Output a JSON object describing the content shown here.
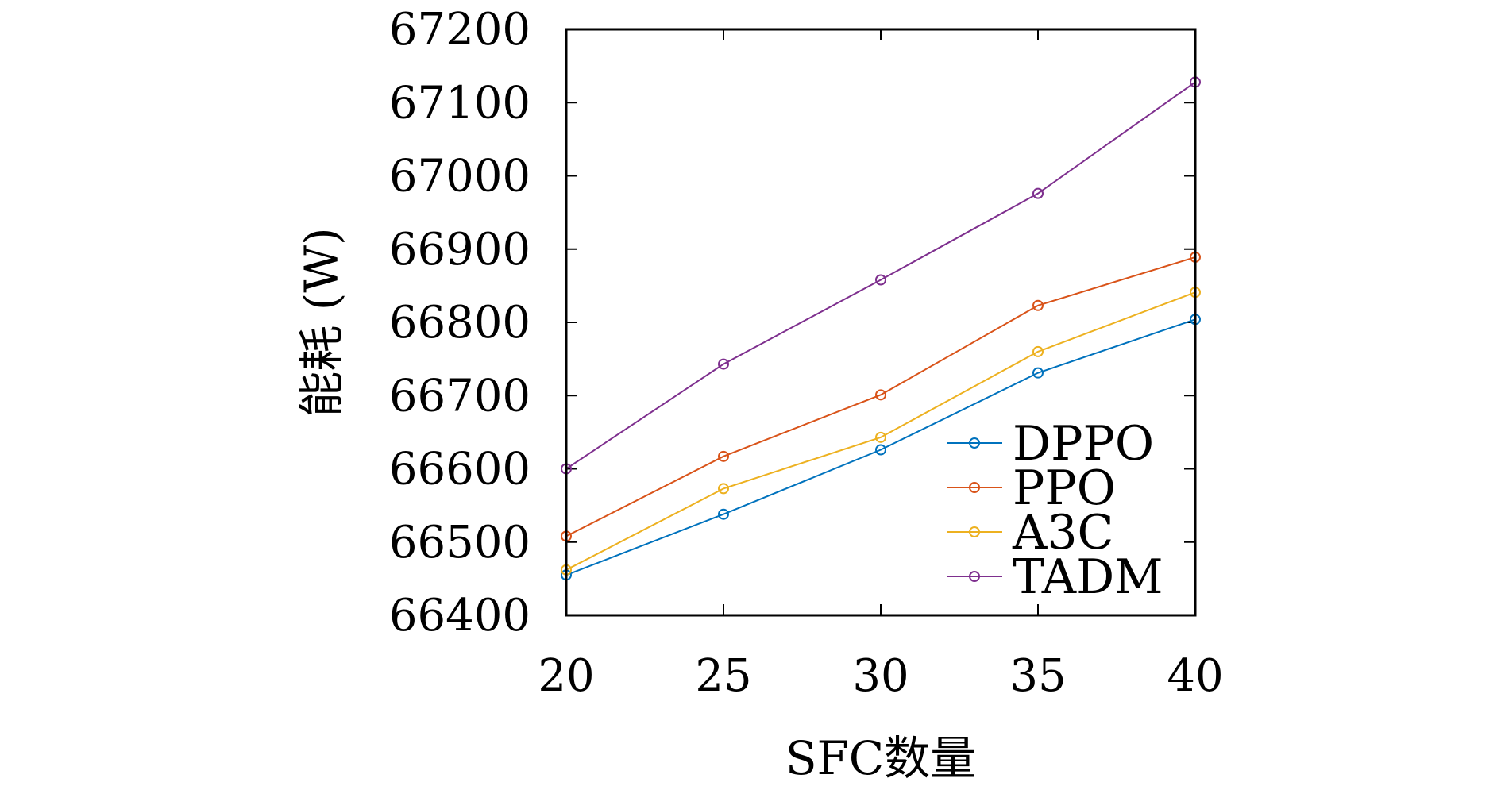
{
  "chart_data": {
    "type": "line",
    "title": "",
    "xlabel": "SFC数量",
    "ylabel": "能耗 (W)",
    "x": [
      20,
      25,
      30,
      35,
      40
    ],
    "xlim": [
      20,
      40
    ],
    "ylim": [
      66400,
      67200
    ],
    "xticks": [
      "20",
      "25",
      "30",
      "35",
      "40"
    ],
    "yticks": [
      "66400",
      "66500",
      "66600",
      "66700",
      "66800",
      "66900",
      "67000",
      "67100",
      "67200"
    ],
    "grid": false,
    "legend_position": "bottom-right",
    "marker": "open-circle",
    "series": [
      {
        "name": "DPPO",
        "color": "#0072BD",
        "values": [
          66455,
          66538,
          66626,
          66731,
          66804
        ]
      },
      {
        "name": "PPO",
        "color": "#D95319",
        "values": [
          66508,
          66617,
          66701,
          66823,
          66889
        ]
      },
      {
        "name": "A3C",
        "color": "#EDB120",
        "values": [
          66462,
          66573,
          66643,
          66760,
          66841
        ]
      },
      {
        "name": "TADM",
        "color": "#7E2F8E",
        "values": [
          66600,
          66743,
          66858,
          66976,
          67128
        ]
      }
    ]
  }
}
